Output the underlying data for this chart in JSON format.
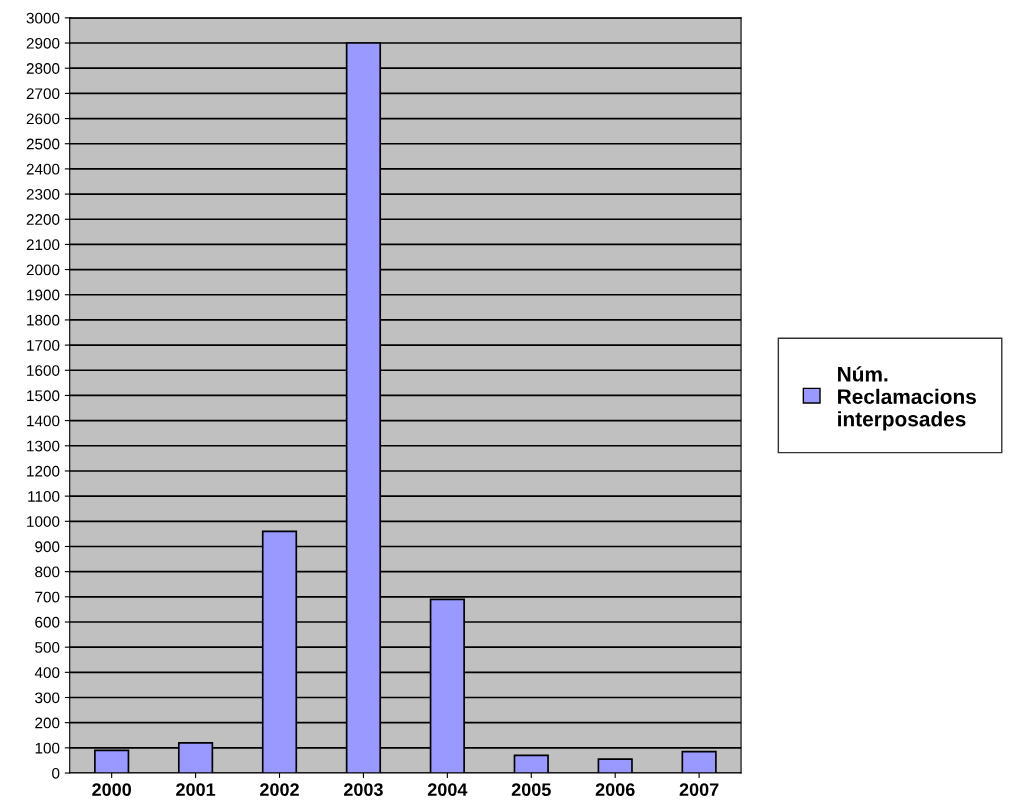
{
  "chart_data": {
    "type": "bar",
    "categories": [
      "2000",
      "2001",
      "2002",
      "2003",
      "2004",
      "2005",
      "2006",
      "2007"
    ],
    "series": [
      {
        "name": "Núm. Reclamacions interposades",
        "color": "#9999ff",
        "values": [
          90,
          120,
          960,
          2900,
          690,
          70,
          55,
          85
        ]
      }
    ],
    "ylim": [
      0,
      3000
    ],
    "yticks": [
      0,
      100,
      200,
      300,
      400,
      500,
      600,
      700,
      800,
      900,
      1000,
      1100,
      1200,
      1300,
      1400,
      1500,
      1600,
      1700,
      1800,
      1900,
      2000,
      2100,
      2200,
      2300,
      2400,
      2500,
      2600,
      2700,
      2800,
      2900,
      3000
    ],
    "grid": "y",
    "legend": "right"
  }
}
